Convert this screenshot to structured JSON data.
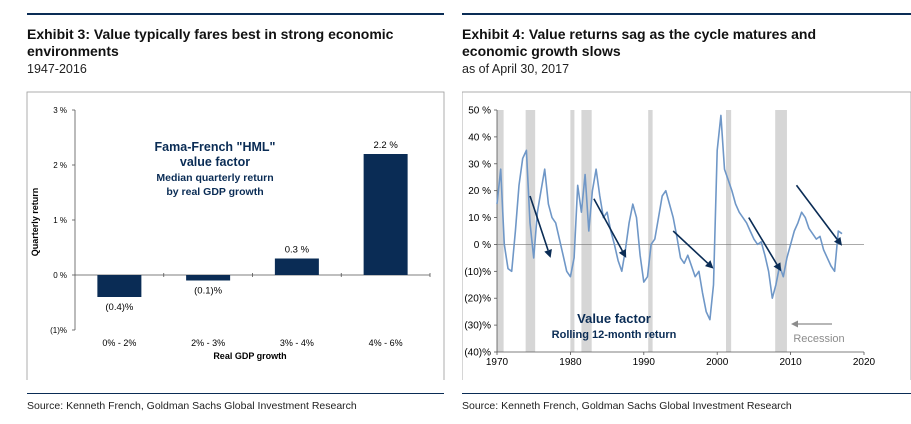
{
  "exhibit3": {
    "title": "Exhibit 3: Value typically fares best in strong economic environments",
    "subtitle": "1947-2016",
    "source": "Source: Kenneth French, Goldman Sachs Global Investment Research"
  },
  "exhibit4": {
    "title": "Exhibit 4: Value returns sag as the cycle matures and economic growth slows",
    "subtitle": "as of April 30, 2017",
    "source": "Source: Kenneth French, Goldman Sachs Global Investment Research"
  },
  "colors": {
    "navy": "#0a2c55",
    "line": "#6f97c7",
    "recession": "#d6d6d6",
    "axis": "#555555",
    "arrow_gray": "#8c8c8c"
  },
  "chart_data": [
    {
      "type": "bar",
      "title": "Fama-French \"HML\" value factor Median quarterly return by real GDP growth",
      "annotation": {
        "line1": "Fama-French \"HML\"",
        "line2": "value factor",
        "line3": "Median quarterly return",
        "line4": "by real GDP growth"
      },
      "categories": [
        "0% - 2%",
        "2% - 3%",
        "3% - 4%",
        "4% - 6%"
      ],
      "values": [
        -0.4,
        -0.1,
        0.3,
        2.2
      ],
      "data_labels": [
        "(0.4)%",
        "(0.1)%",
        "0.3 %",
        "2.2 %"
      ],
      "xlabel": "Real GDP growth",
      "ylabel": "Quarterly return",
      "ylim": [
        -1,
        3
      ],
      "yticks": [
        -1,
        0,
        1,
        2,
        3
      ],
      "ytick_labels": [
        "(1)%",
        "0 %",
        "1 %",
        "2 %",
        "3 %"
      ]
    },
    {
      "type": "line",
      "series_name": "Value factor",
      "series_label": "Rolling 12-month return",
      "xlim": [
        1970,
        2020
      ],
      "ylim": [
        -40,
        50
      ],
      "xticks": [
        1970,
        1980,
        1990,
        2000,
        2010,
        2020
      ],
      "xtick_labels": [
        "1970",
        "1980",
        "1990",
        "2000",
        "2010",
        "2020"
      ],
      "yticks": [
        -40,
        -30,
        -20,
        -10,
        0,
        10,
        20,
        30,
        40,
        50
      ],
      "ytick_labels": [
        "(40)%",
        "(30)%",
        "(20)%",
        "(10)%",
        "0 %",
        "10 %",
        "20 %",
        "30 %",
        "40 %",
        "50 %"
      ],
      "recessions": [
        [
          1970.0,
          1970.9
        ],
        [
          1973.9,
          1975.2
        ],
        [
          1980.0,
          1980.5
        ],
        [
          1981.5,
          1982.9
        ],
        [
          1990.6,
          1991.2
        ],
        [
          2001.2,
          2001.9
        ],
        [
          2007.9,
          2009.5
        ]
      ],
      "x": [
        1970,
        1970.5,
        1971,
        1971.5,
        1972,
        1972.5,
        1973,
        1973.5,
        1974,
        1974.5,
        1975,
        1975.5,
        1976,
        1976.5,
        1977,
        1977.5,
        1978,
        1978.5,
        1979,
        1979.5,
        1980,
        1980.5,
        1981,
        1981.5,
        1982,
        1982.5,
        1983,
        1983.5,
        1984,
        1984.5,
        1985,
        1985.5,
        1986,
        1986.5,
        1987,
        1987.5,
        1988,
        1988.5,
        1989,
        1989.5,
        1990,
        1990.5,
        1991,
        1991.5,
        1992,
        1992.5,
        1993,
        1993.5,
        1994,
        1994.5,
        1995,
        1995.5,
        1996,
        1996.5,
        1997,
        1997.5,
        1998,
        1998.5,
        1999,
        1999.5,
        2000,
        2000.5,
        2001,
        2001.5,
        2002,
        2002.5,
        2003,
        2003.5,
        2004,
        2004.5,
        2005,
        2005.5,
        2006,
        2006.5,
        2007,
        2007.5,
        2008,
        2008.5,
        2009,
        2009.5,
        2010,
        2010.5,
        2011,
        2011.5,
        2012,
        2012.5,
        2013,
        2013.5,
        2014,
        2014.5,
        2015,
        2015.5,
        2016,
        2016.5,
        2017
      ],
      "values": [
        15,
        28,
        0,
        -9,
        -10,
        5,
        22,
        32,
        35,
        8,
        -5,
        12,
        20,
        28,
        15,
        10,
        8,
        2,
        -4,
        -10,
        -12,
        -5,
        22,
        12,
        26,
        5,
        20,
        28,
        18,
        10,
        12,
        5,
        0,
        -6,
        -10,
        -2,
        8,
        15,
        10,
        -4,
        -14,
        -12,
        0,
        2,
        10,
        18,
        20,
        15,
        10,
        3,
        -5,
        -7,
        -4,
        -8,
        -12,
        -10,
        -18,
        -25,
        -28,
        -15,
        35,
        48,
        28,
        24,
        20,
        15,
        12,
        10,
        8,
        5,
        2,
        0,
        1,
        -4,
        -10,
        -20,
        -15,
        -8,
        -12,
        -5,
        0,
        5,
        8,
        12,
        10,
        6,
        4,
        2,
        3,
        -2,
        -5,
        -8,
        -10,
        5,
        4
      ]
    }
  ],
  "exhibit4_annotation": {
    "label1": "Value factor",
    "label2": "Rolling 12-month return",
    "recession_label": "Recession"
  },
  "arrows": [
    [
      1974.5,
      18,
      1977.3,
      -5
    ],
    [
      1983.2,
      17,
      1987.6,
      -5
    ],
    [
      1994.0,
      5,
      1999.5,
      -9
    ],
    [
      2004.3,
      10,
      2008.7,
      -10
    ],
    [
      2010.8,
      22,
      2017.0,
      -0.5
    ]
  ]
}
